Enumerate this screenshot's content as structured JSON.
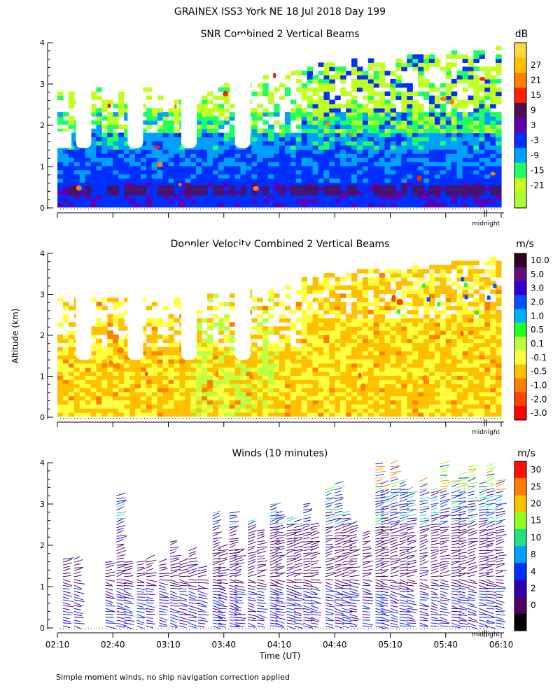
{
  "figure_title": "GRAINEX ISS3 York NE  18 Jul 2018 Day 199",
  "shared_ylabel": "Altitude (km)",
  "xlabel": "Time (UT)",
  "footnote": "Simple moment winds, no ship navigation correction applied",
  "midnight_label": "midnight",
  "chart_data": [
    {
      "type": "heatmap",
      "title": "SNR Combined 2 Vertical Beams",
      "colorbar_unit": "dB",
      "yticks": [
        "0",
        "1",
        "2",
        "3",
        "4"
      ],
      "ylim": [
        0,
        4
      ],
      "colorbar": [
        {
          "label": "27",
          "color": "#ffc000"
        },
        {
          "label": "21",
          "color": "#ff8000"
        },
        {
          "label": "15",
          "color": "#ff2000"
        },
        {
          "label": "9",
          "color": "#501050"
        },
        {
          "label": "3",
          "color": "#6000b0"
        },
        {
          "label": "-3",
          "color": "#0030ff"
        },
        {
          "label": "-9",
          "color": "#00a0ff"
        },
        {
          "label": "-15",
          "color": "#20ff60"
        },
        {
          "label": "-21",
          "color": "#c0ff20"
        }
      ],
      "extra_colorbar_bottom": "#a8ff30",
      "extra_colorbar_top": "#ffd840",
      "gaps_below_2km_start_times": [
        "02:20",
        "02:48",
        "03:17",
        "03:46"
      ],
      "echo_top_km": [
        2.9,
        2.9,
        2.8,
        3.0,
        3.2,
        3.5,
        3.6,
        3.7,
        3.9
      ]
    },
    {
      "type": "heatmap",
      "title": "Doppler Velocity Combined 2 Vertical Beams",
      "colorbar_unit": "m/s",
      "yticks": [
        "0",
        "1",
        "2",
        "3",
        "4"
      ],
      "ylim": [
        0,
        4
      ],
      "colorbar": [
        {
          "label": "10.0",
          "color": "#300020"
        },
        {
          "label": "5.0",
          "color": "#601080"
        },
        {
          "label": "3.0",
          "color": "#3000d0"
        },
        {
          "label": "2.0",
          "color": "#0050ff"
        },
        {
          "label": "1.0",
          "color": "#00b0ff"
        },
        {
          "label": "0.5",
          "color": "#20ff20"
        },
        {
          "label": "0.1",
          "color": "#c0ff40"
        },
        {
          "label": "-0.1",
          "color": "#ffff40"
        },
        {
          "label": "-0.5",
          "color": "#ffc000"
        },
        {
          "label": "-1.0",
          "color": "#ff8000"
        },
        {
          "label": "-2.0",
          "color": "#ff4000"
        },
        {
          "label": "-3.0",
          "color": "#ff0000"
        }
      ]
    },
    {
      "type": "scatter",
      "title": "Winds (10 minutes)",
      "colorbar_unit": "m/s",
      "yticks": [
        "0",
        "1",
        "2",
        "3",
        "4"
      ],
      "ylim": [
        0,
        4
      ],
      "xticks": [
        "02:10",
        "02:40",
        "03:10",
        "03:40",
        "04:10",
        "04:40",
        "05:10",
        "05:40",
        "06:10"
      ],
      "colorbar": [
        {
          "label": "30",
          "color": "#ff1000"
        },
        {
          "label": "25",
          "color": "#ff8000"
        },
        {
          "label": "20",
          "color": "#ffc000"
        },
        {
          "label": "15",
          "color": "#90ff20"
        },
        {
          "label": "10",
          "color": "#20e080"
        },
        {
          "label": "8",
          "color": "#00a0ff"
        },
        {
          "label": "4",
          "color": "#0030ff"
        },
        {
          "label": "2",
          "color": "#3000b0"
        },
        {
          "label": "0",
          "color": "#500060"
        }
      ],
      "extra_colorbar_bottom": "#000000",
      "profile_times": [
        "02:13",
        "02:19",
        "02:36",
        "02:42",
        "02:46",
        "02:53",
        "02:58",
        "03:05",
        "03:11",
        "03:16",
        "03:21",
        "03:26",
        "03:34",
        "03:37",
        "03:43",
        "03:46",
        "03:53",
        "03:58",
        "04:05",
        "04:08",
        "04:14",
        "04:18",
        "04:23",
        "04:27",
        "04:35",
        "04:40",
        "04:44",
        "04:48",
        "04:55",
        "05:02",
        "05:05",
        "05:10",
        "05:15",
        "05:19",
        "05:26",
        "05:32",
        "05:37",
        "05:43",
        "05:47",
        "05:52",
        "05:58",
        "06:02",
        "06:07"
      ],
      "profile_tops_km": [
        1.7,
        1.7,
        1.6,
        3.2,
        1.6,
        1.6,
        1.7,
        1.6,
        2.1,
        1.6,
        1.9,
        1.5,
        2.8,
        2.0,
        2.8,
        1.9,
        2.6,
        2.4,
        3.0,
        2.8,
        2.7,
        2.6,
        3.0,
        2.5,
        3.4,
        3.5,
        2.8,
        2.5,
        2.3,
        4.0,
        3.5,
        4.0,
        3.6,
        3.4,
        3.6,
        3.4,
        4.0,
        3.6,
        3.7,
        3.9,
        3.5,
        3.9,
        3.6
      ]
    }
  ]
}
